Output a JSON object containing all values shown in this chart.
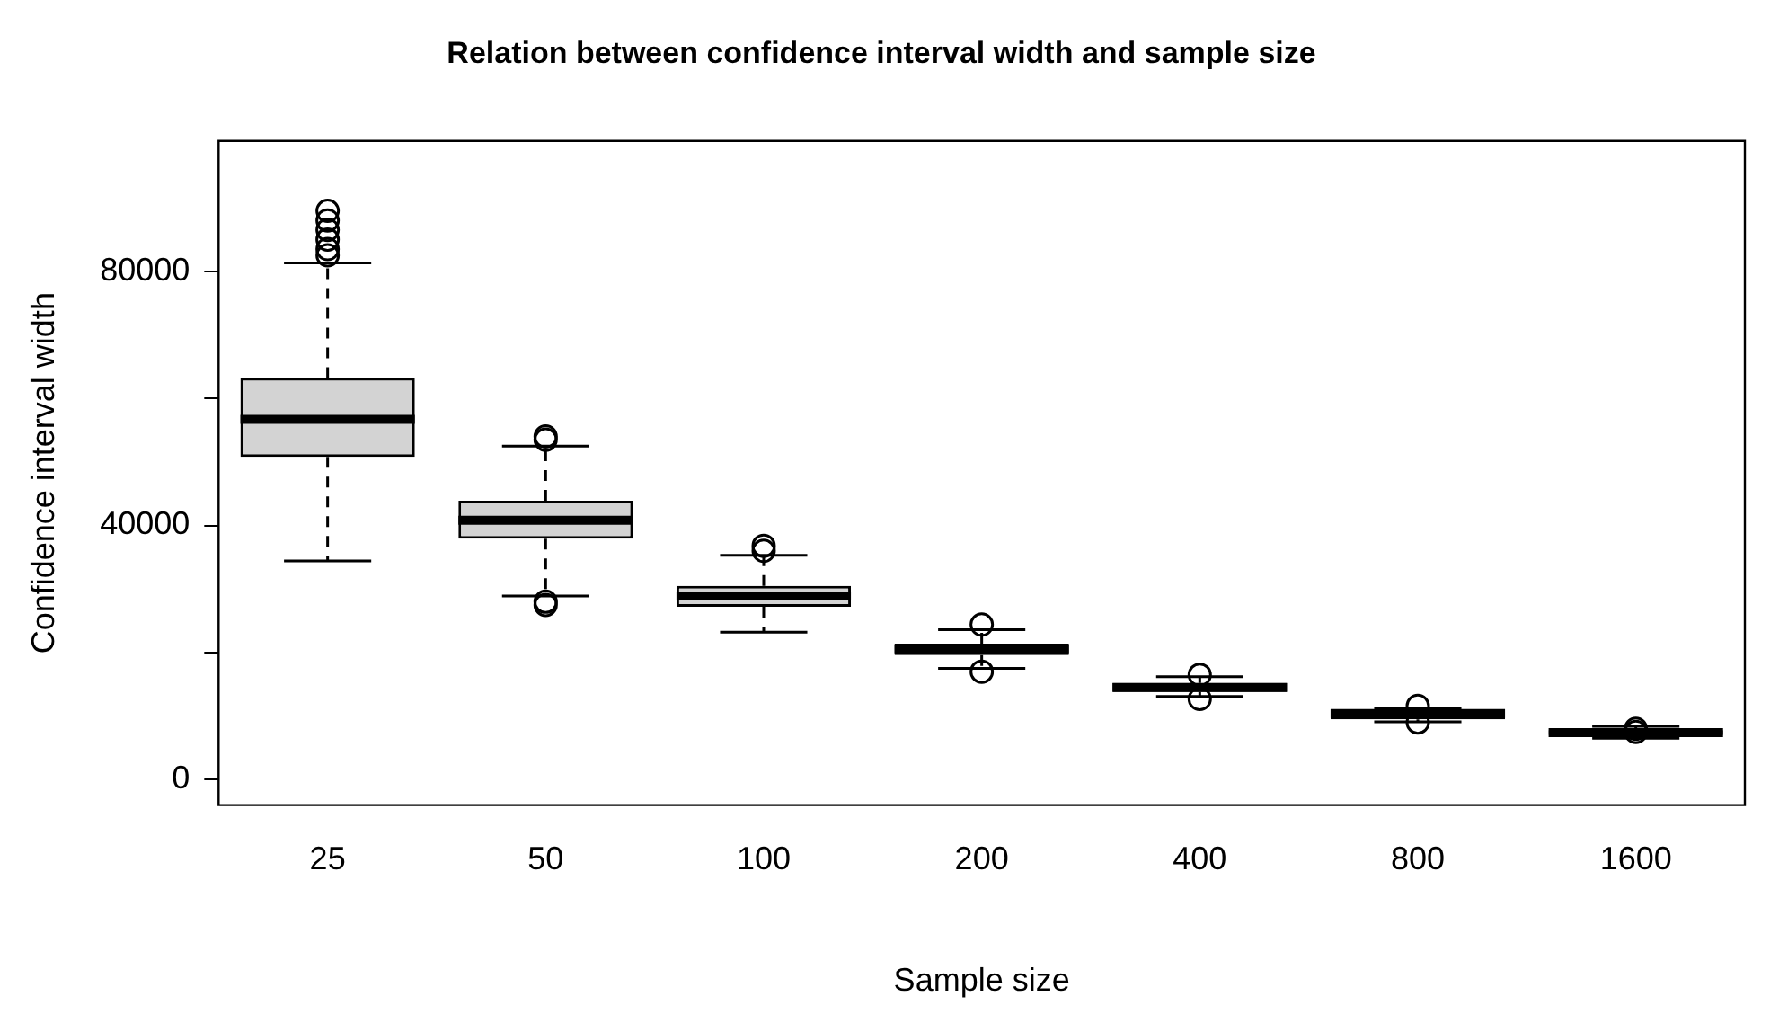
{
  "chart_data": {
    "type": "box",
    "title": "Relation between confidence interval width and sample size",
    "xlabel": "Sample size",
    "ylabel": "Confidence interval width",
    "categories": [
      "25",
      "50",
      "100",
      "200",
      "400",
      "800",
      "1600"
    ],
    "boxes": [
      {
        "low": 34400,
        "q1": 50800,
        "median": 56700,
        "q3": 63200,
        "high": 81300,
        "outliers": [
          82500,
          83500,
          85000,
          86500,
          88000,
          89500
        ]
      },
      {
        "low": 28900,
        "q1": 37900,
        "median": 40800,
        "q3": 43900,
        "high": 52500,
        "outliers": [
          53500,
          54000,
          28000,
          27500
        ]
      },
      {
        "low": 23200,
        "q1": 27200,
        "median": 28900,
        "q3": 30500,
        "high": 35300,
        "outliers": [
          36000,
          36800
        ]
      },
      {
        "low": 17500,
        "q1": 19600,
        "median": 20600,
        "q3": 21400,
        "high": 23600,
        "outliers": [
          24400,
          17000
        ]
      },
      {
        "low": 13100,
        "q1": 13800,
        "median": 14500,
        "q3": 15200,
        "high": 16200,
        "outliers": [
          16500,
          12700
        ]
      },
      {
        "low": 9100,
        "q1": 9500,
        "median": 10400,
        "q3": 10900,
        "high": 11300,
        "outliers": [
          11600,
          9000
        ]
      },
      {
        "low": 6500,
        "q1": 7000,
        "median": 7400,
        "q3": 7800,
        "high": 8400,
        "outliers": [
          8000,
          7500
        ]
      }
    ],
    "ylim": [
      -4000,
      100500
    ],
    "yticks": [
      0,
      {
        "value": 20000,
        "label": null
      },
      40000,
      {
        "value": 60000,
        "label": null
      },
      80000
    ],
    "grid": false,
    "legend": false
  }
}
